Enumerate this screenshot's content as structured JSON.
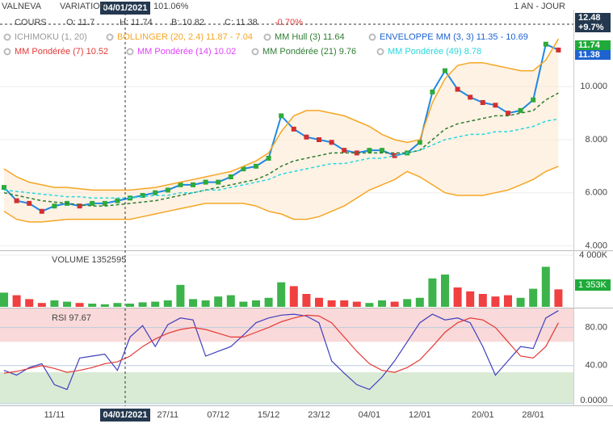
{
  "header": {
    "name": "VALNEVA",
    "variation": "VARIATION",
    "variation_value": "101.06%",
    "period": "1 AN - JOUR",
    "cours": "COURS",
    "open": "O: 11.7",
    "high": "H: 11.74",
    "low": "B: 10.82",
    "close": "C: 11.38",
    "change": "-0.70%",
    "price_tags": [
      "12.48",
      "+9.7%",
      "11.74",
      "11.38"
    ]
  },
  "crosshair": {
    "date": "04/01/2021"
  },
  "chart_data": [
    {
      "type": "line",
      "ylim": [
        3.8,
        12.9
      ],
      "yticks": [
        {
          "value": 4,
          "label": "4.000"
        },
        {
          "value": 6,
          "label": "6.000"
        },
        {
          "value": 8,
          "label": "8.000"
        },
        {
          "value": 10,
          "label": "10.000"
        }
      ],
      "indicators": [
        {
          "name": "ICHIMOKU (1, 20)",
          "color": "#999999"
        },
        {
          "name": "MM Hull (3) 11.64",
          "color": "#2e7d32"
        },
        {
          "name": "ENVELOPPE MM (3, 3) 11.35 - 10.69",
          "color": "#1e63d0"
        },
        {
          "name": "MM Pondérée (7) 10.52",
          "color": "#e53935"
        },
        {
          "name": "MM Pondérée (14) 10.02",
          "color": "#e040fb"
        }
      ],
      "series": [
        {
          "name": "COURS",
          "color": "#1e88e5",
          "values": [
            6.2,
            5.7,
            5.6,
            5.3,
            5.5,
            5.6,
            5.5,
            5.6,
            5.6,
            5.7,
            5.8,
            5.9,
            6.0,
            6.1,
            6.3,
            6.3,
            6.4,
            6.4,
            6.6,
            6.9,
            7.0,
            7.3,
            8.9,
            8.4,
            8.1,
            8.0,
            7.9,
            7.6,
            7.5,
            7.6,
            7.6,
            7.4,
            7.5,
            7.9,
            9.8,
            10.6,
            9.9,
            9.6,
            9.4,
            9.3,
            9.0,
            9.1,
            9.5,
            11.6,
            11.38
          ]
        },
        {
          "name": "BOLLINGER (20, 2.4) 11.87 - 7.04",
          "color": "#f5a623",
          "values": [
            6.9,
            6.6,
            6.4,
            6.3,
            6.2,
            6.2,
            6.15,
            6.1,
            6.1,
            6.1,
            6.1,
            6.15,
            6.2,
            6.3,
            6.4,
            6.5,
            6.6,
            6.7,
            6.8,
            7.0,
            7.2,
            7.5,
            8.3,
            8.9,
            9.1,
            9.1,
            9.0,
            8.9,
            8.7,
            8.5,
            8.2,
            8.0,
            7.9,
            8.0,
            9.4,
            10.3,
            10.8,
            10.9,
            10.9,
            10.8,
            10.7,
            10.6,
            10.6,
            11.0,
            11.8
          ],
          "lower": [
            5.3,
            5.0,
            4.9,
            4.9,
            4.95,
            5.0,
            5.0,
            5.0,
            5.0,
            5.0,
            5.0,
            5.1,
            5.2,
            5.3,
            5.4,
            5.5,
            5.6,
            5.6,
            5.6,
            5.6,
            5.5,
            5.3,
            5.2,
            5.0,
            5.0,
            5.1,
            5.3,
            5.5,
            5.8,
            6.1,
            6.3,
            6.5,
            6.8,
            6.6,
            6.3,
            6.0,
            5.9,
            5.9,
            5.9,
            6.0,
            6.1,
            6.3,
            6.5,
            6.8,
            7.0
          ]
        },
        {
          "name": "MM Pondérée (21) 9.76",
          "color": "#2e7d32",
          "values": [
            6.0,
            5.9,
            5.8,
            5.7,
            5.65,
            5.6,
            5.55,
            5.5,
            5.5,
            5.55,
            5.6,
            5.65,
            5.7,
            5.8,
            5.9,
            6.0,
            6.1,
            6.2,
            6.3,
            6.4,
            6.5,
            6.7,
            7.0,
            7.2,
            7.3,
            7.4,
            7.5,
            7.5,
            7.5,
            7.5,
            7.5,
            7.5,
            7.5,
            7.6,
            8.0,
            8.4,
            8.6,
            8.7,
            8.8,
            8.9,
            8.9,
            9.0,
            9.1,
            9.5,
            9.76
          ]
        },
        {
          "name": "MM Pondérée (49) 8.78",
          "color": "#26d7e0",
          "values": [
            6.1,
            6.05,
            6.0,
            5.95,
            5.9,
            5.85,
            5.85,
            5.8,
            5.8,
            5.8,
            5.8,
            5.85,
            5.9,
            5.9,
            6.0,
            6.0,
            6.1,
            6.1,
            6.2,
            6.3,
            6.4,
            6.5,
            6.7,
            6.8,
            6.9,
            7.0,
            7.1,
            7.1,
            7.2,
            7.3,
            7.3,
            7.4,
            7.5,
            7.6,
            7.8,
            8.0,
            8.1,
            8.2,
            8.2,
            8.3,
            8.3,
            8.4,
            8.5,
            8.7,
            8.78
          ]
        }
      ]
    },
    {
      "type": "bar",
      "title": "VOLUME 1352595",
      "ylim": [
        0,
        4000
      ],
      "yticks": [
        {
          "value": 4000,
          "label": "4 000K"
        }
      ],
      "last_label": "1 353K",
      "up_color": "#3cb44b",
      "down_color": "#f04040",
      "values": [
        1100,
        900,
        600,
        300,
        500,
        400,
        300,
        250,
        200,
        300,
        250,
        350,
        400,
        500,
        1700,
        600,
        500,
        800,
        900,
        400,
        500,
        700,
        1900,
        1600,
        1000,
        700,
        500,
        500,
        400,
        300,
        500,
        400,
        600,
        700,
        2200,
        2500,
        1500,
        1200,
        1000,
        800,
        900,
        700,
        1400,
        3100,
        1353
      ]
    },
    {
      "type": "line",
      "title": "RSI 97.67",
      "ylim": [
        0,
        100
      ],
      "yticks": [
        {
          "value": 0,
          "label": "0.0000"
        },
        {
          "value": 40,
          "label": "40.00"
        },
        {
          "value": 80,
          "label": "80.00"
        }
      ],
      "zones": [
        {
          "from": 65,
          "to": 100,
          "color": "#f9d9d9"
        },
        {
          "from": 0,
          "to": 33,
          "color": "#d9ebd5"
        }
      ],
      "categories": [
        null,
        null,
        null,
        null,
        "11/11",
        null,
        null,
        null,
        null,
        null,
        null,
        null,
        null,
        "27/11",
        null,
        null,
        null,
        "07/12",
        null,
        null,
        null,
        "15/12",
        null,
        null,
        null,
        "23/12",
        null,
        null,
        null,
        "04/01",
        null,
        null,
        null,
        "12/01",
        null,
        null,
        null,
        null,
        "20/01",
        null,
        null,
        null,
        "28/01",
        null,
        null
      ],
      "series": [
        {
          "color": "#3f3fbf",
          "values": [
            35,
            30,
            38,
            42,
            20,
            15,
            48,
            50,
            52,
            35,
            70,
            82,
            60,
            83,
            90,
            88,
            50,
            55,
            60,
            72,
            85,
            90,
            93,
            94,
            92,
            85,
            45,
            32,
            20,
            15,
            28,
            45,
            65,
            85,
            94,
            88,
            90,
            85,
            60,
            30,
            45,
            60,
            58,
            90,
            97.67
          ]
        },
        {
          "color": "#e53935",
          "values": [
            32,
            34,
            37,
            40,
            37,
            33,
            35,
            38,
            42,
            44,
            50,
            60,
            68,
            74,
            78,
            80,
            78,
            74,
            70,
            70,
            75,
            80,
            86,
            90,
            93,
            92,
            85,
            70,
            55,
            42,
            35,
            33,
            38,
            46,
            60,
            75,
            85,
            90,
            88,
            80,
            65,
            50,
            48,
            60,
            85
          ]
        }
      ]
    }
  ]
}
